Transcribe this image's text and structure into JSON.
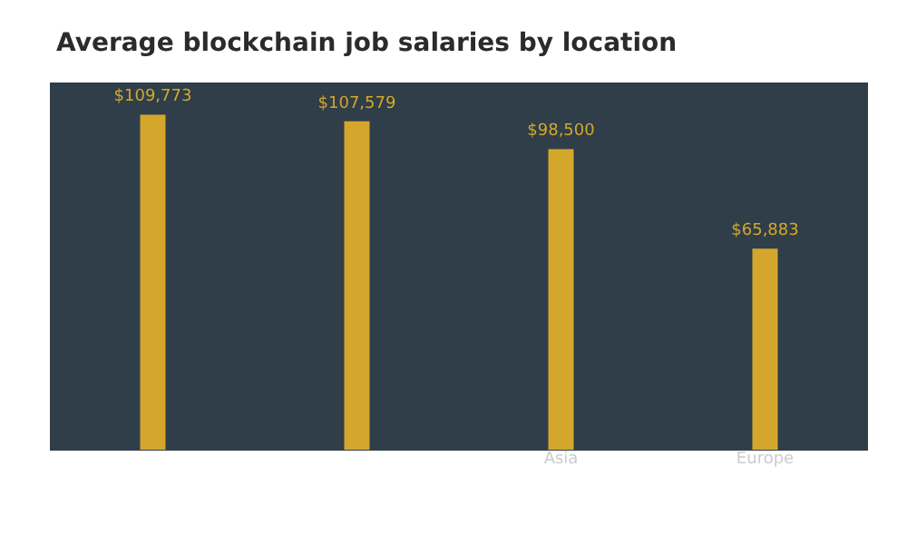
{
  "chart_data": {
    "type": "bar",
    "title": "Average blockchain job salaries by location",
    "categories": [
      null,
      null,
      "Asia",
      "Europe"
    ],
    "values": [
      109773,
      107579,
      98500,
      65883
    ],
    "value_labels": [
      "$109,773",
      "$107,579",
      "$98,500",
      "$65,883"
    ],
    "color": "#d4a72c",
    "grid": false
  }
}
